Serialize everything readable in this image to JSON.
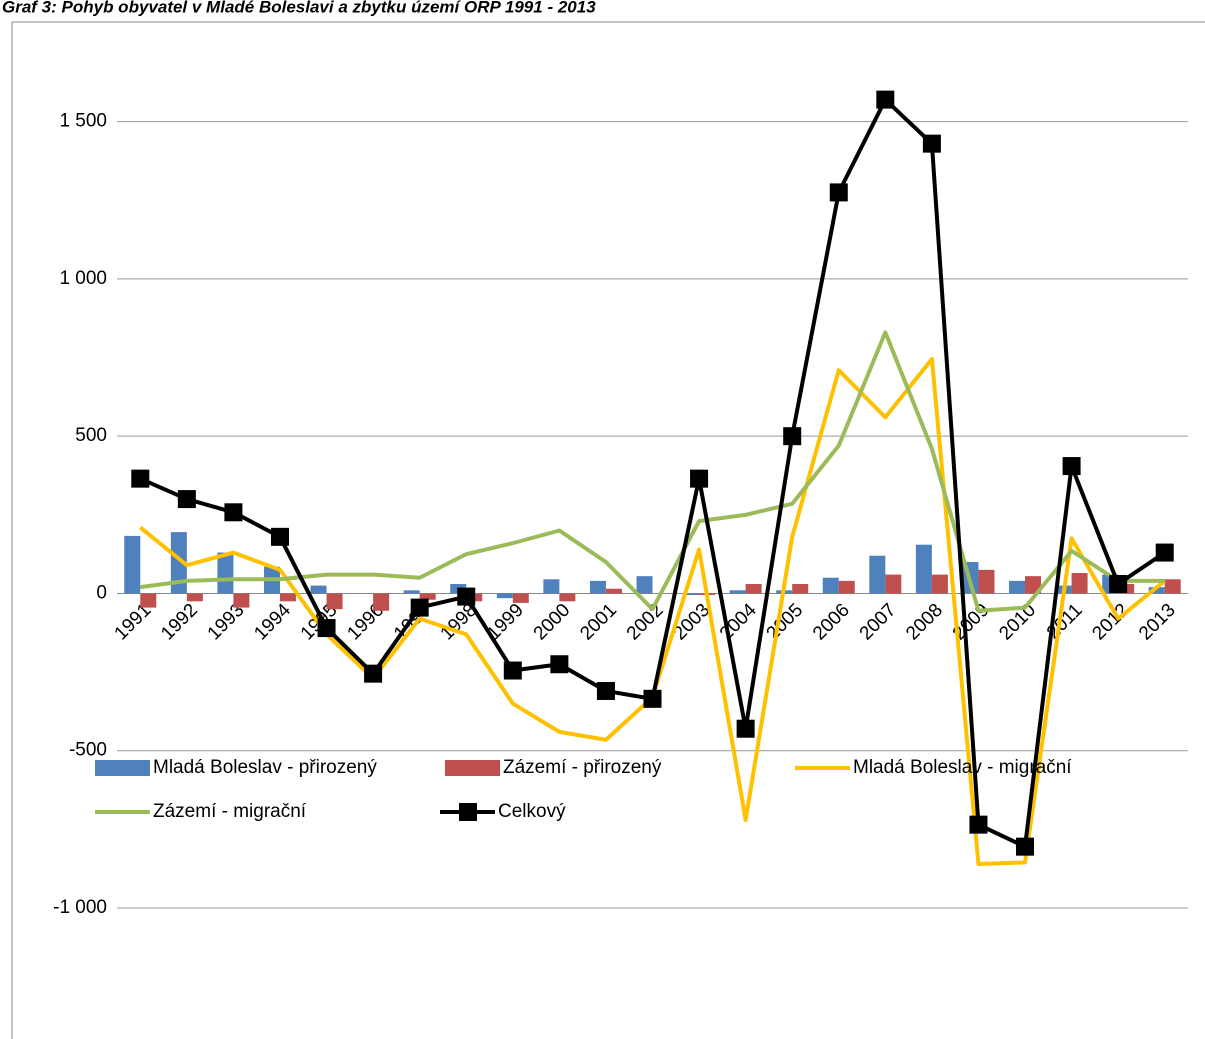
{
  "chart_data": {
    "type": "line",
    "title": "Graf 3: Pohyb obyvatel v Mladé Boleslavi a zbytku území ORP 1991 - 2013",
    "categories": [
      "1991",
      "1992",
      "1993",
      "1994",
      "1995",
      "1996",
      "1997",
      "1998",
      "1999",
      "2000",
      "2001",
      "2002",
      "2003",
      "2004",
      "2005",
      "2006",
      "2007",
      "2008",
      "2009",
      "2010",
      "2011",
      "2012",
      "2013"
    ],
    "ylim": [
      -1000,
      1750
    ],
    "yticks": [
      {
        "value": -1000,
        "label": "-1 000"
      },
      -500,
      0,
      500,
      {
        "value": 1000,
        "label": "1 000"
      },
      {
        "value": 1500,
        "label": "1 500"
      }
    ],
    "grid": true,
    "legend": "bottom",
    "series": [
      {
        "name": "Mladá Boleslav - přirozený",
        "type": "bar",
        "color": "#4f81bd",
        "values": [
          183,
          195,
          130,
          85,
          25,
          0,
          10,
          30,
          -15,
          45,
          40,
          55,
          -5,
          10,
          10,
          50,
          120,
          155,
          100,
          40,
          25,
          60,
          20
        ]
      },
      {
        "name": "Zázemí - přirozený",
        "type": "bar",
        "color": "#c0504d",
        "values": [
          -45,
          -25,
          -45,
          -25,
          -50,
          -55,
          -20,
          -25,
          -30,
          -25,
          15,
          0,
          -5,
          30,
          30,
          40,
          60,
          60,
          75,
          55,
          65,
          30,
          45
        ]
      },
      {
        "name": "Mladá Boleslav - migrační",
        "type": "line",
        "color": "#ffc000",
        "values": [
          210,
          90,
          130,
          75,
          -130,
          -270,
          -80,
          -130,
          -350,
          -440,
          -465,
          -330,
          140,
          -720,
          180,
          710,
          560,
          745,
          -860,
          -855,
          175,
          -80,
          40
        ]
      },
      {
        "name": "Zázemí - migrační",
        "type": "line",
        "color": "#9bbb59",
        "values": [
          20,
          40,
          45,
          45,
          60,
          60,
          50,
          125,
          160,
          200,
          100,
          -50,
          230,
          250,
          285,
          470,
          830,
          460,
          -55,
          -45,
          135,
          40,
          40
        ]
      },
      {
        "name": "Celkový",
        "type": "line",
        "color": "#000000",
        "marker": "square",
        "values": [
          365,
          300,
          258,
          180,
          -110,
          -255,
          -45,
          -10,
          -245,
          -225,
          -310,
          -335,
          365,
          -430,
          500,
          1275,
          1570,
          1430,
          -735,
          -805,
          405,
          30,
          130
        ]
      }
    ]
  }
}
